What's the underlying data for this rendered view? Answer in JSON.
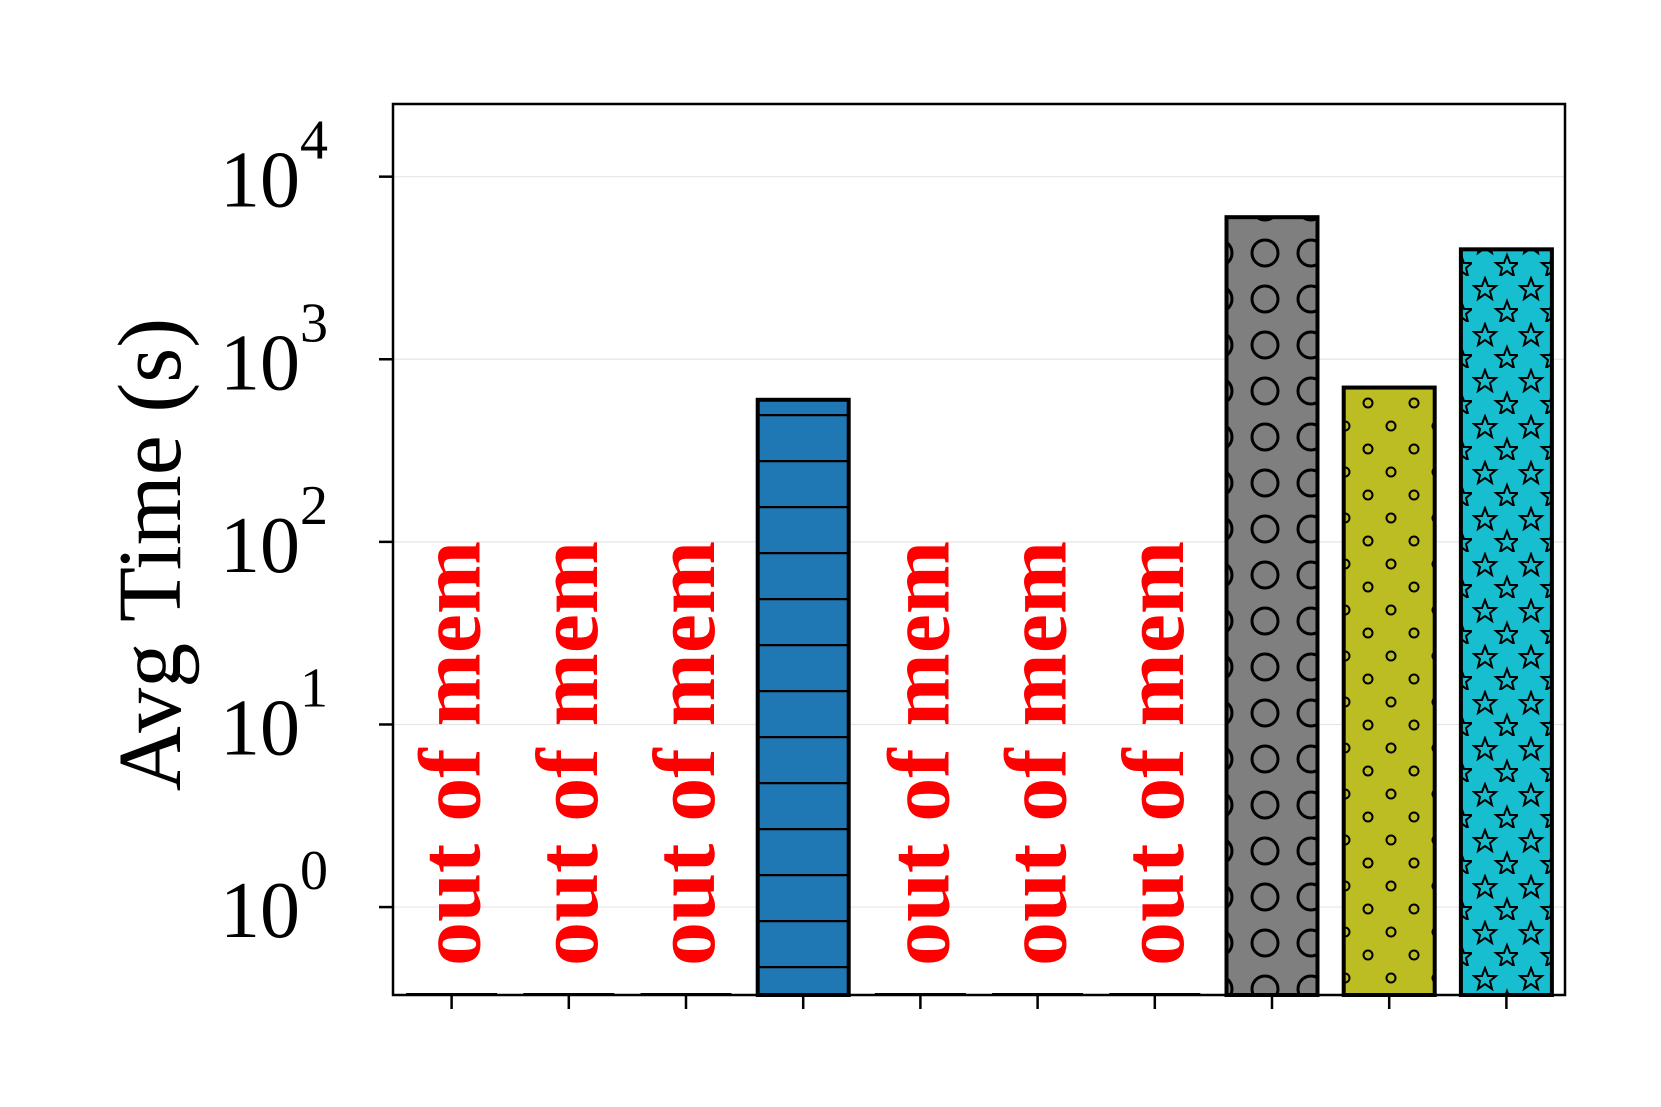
{
  "chart_data": {
    "type": "bar",
    "yscale": "log",
    "ylabel": "Avg Time (s)",
    "xlabel": "",
    "title": "",
    "ylim": [
      0.33,
      25000
    ],
    "yticks": [
      {
        "value": 1,
        "base": "10",
        "exp": "0"
      },
      {
        "value": 10,
        "base": "10",
        "exp": "1"
      },
      {
        "value": 100,
        "base": "10",
        "exp": "2"
      },
      {
        "value": 1000,
        "base": "10",
        "exp": "3"
      },
      {
        "value": 10000,
        "base": "10",
        "exp": "4"
      }
    ],
    "grid": true,
    "bars": [
      {
        "value": null,
        "label": "out of mem"
      },
      {
        "value": null,
        "label": "out of mem"
      },
      {
        "value": null,
        "label": "out of mem"
      },
      {
        "value": 600,
        "label": "",
        "color": "#1f77b4",
        "hatch": "horizontal-lines"
      },
      {
        "value": null,
        "label": "out of mem"
      },
      {
        "value": null,
        "label": "out of mem"
      },
      {
        "value": null,
        "label": "out of mem"
      },
      {
        "value": 6000,
        "label": "",
        "color": "#7f7f7f",
        "hatch": "circles"
      },
      {
        "value": 700,
        "label": "",
        "color": "#bcbd22",
        "hatch": "dots"
      },
      {
        "value": 4000,
        "label": "",
        "color": "#17becf",
        "hatch": "stars"
      }
    ],
    "annotation_color": "#ff0000"
  }
}
